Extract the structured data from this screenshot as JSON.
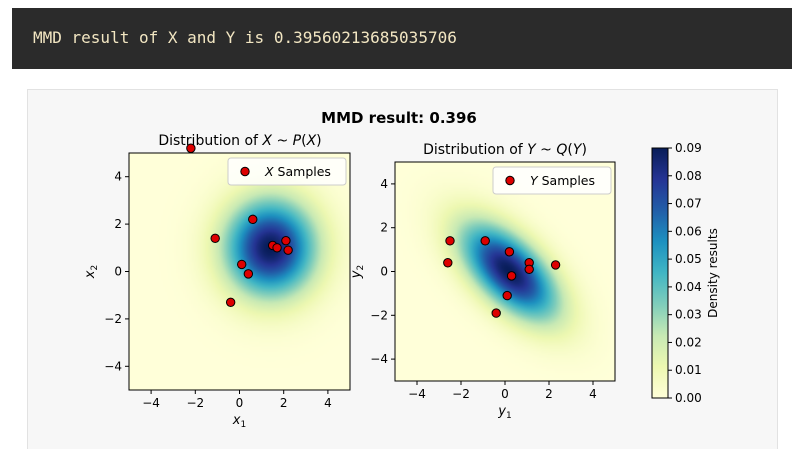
{
  "console": {
    "text": "MMD result of X and Y is 0.39560213685035706"
  },
  "colors": {
    "sample_fill": "#dd0000",
    "sample_edge": "#000000",
    "colormap": "YlGnBu"
  },
  "chart_data": [
    {
      "type": "scatter",
      "suptitle": "MMD result: 0.396",
      "title": "Distribution of X ~ P(X)",
      "xlabel": "x1",
      "ylabel": "x2",
      "xlim": [
        -5,
        5
      ],
      "ylim": [
        -5,
        5
      ],
      "xticks": [
        -4,
        -2,
        0,
        2,
        4
      ],
      "yticks": [
        -4,
        -2,
        0,
        2,
        4
      ],
      "legend": "top-right",
      "density": {
        "center": [
          1.4,
          1.0
        ],
        "sigma": 1.4
      },
      "series": [
        {
          "name": "X Samples",
          "x": [
            -2.2,
            -1.1,
            0.6,
            0.1,
            0.4,
            -0.4,
            1.5,
            1.7,
            2.1,
            2.2
          ],
          "y": [
            5.2,
            1.4,
            2.2,
            0.3,
            -0.1,
            -1.3,
            1.1,
            1.0,
            1.3,
            0.9
          ]
        }
      ]
    },
    {
      "type": "scatter",
      "title": "Distribution of Y ~ Q(Y)",
      "xlabel": "y1",
      "ylabel": "y2",
      "xlim": [
        -5,
        5
      ],
      "ylim": [
        -5,
        5
      ],
      "xticks": [
        -4,
        -2,
        0,
        2,
        4
      ],
      "yticks": [
        -4,
        -2,
        0,
        2,
        4
      ],
      "legend": "top-right",
      "density": {
        "center": [
          0.2,
          0.0
        ],
        "sx": 1.5,
        "sy": 1.5,
        "rho": -0.6
      },
      "series": [
        {
          "name": "Y Samples",
          "x": [
            -2.5,
            -2.6,
            -0.9,
            0.2,
            1.1,
            1.1,
            2.3,
            0.3,
            0.1,
            -0.4
          ],
          "y": [
            1.4,
            0.4,
            1.4,
            0.9,
            0.4,
            0.1,
            0.3,
            -0.2,
            -1.1,
            -1.9
          ]
        }
      ]
    }
  ],
  "colorbar": {
    "label": "Density results",
    "ticks": [
      "0.00",
      "0.01",
      "0.02",
      "0.03",
      "0.04",
      "0.05",
      "0.06",
      "0.07",
      "0.08",
      "0.09"
    ],
    "range": [
      0,
      0.09
    ]
  }
}
